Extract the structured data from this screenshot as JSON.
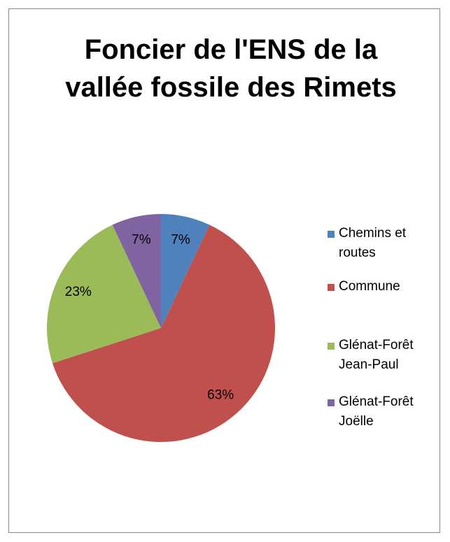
{
  "chart_data": {
    "type": "pie",
    "title": "Foncier de l'ENS de la vallée fossile des Rimets",
    "categories": [
      "Chemins et routes",
      "Commune",
      "Glénat-Forêt Jean-Paul",
      "Glénat-Forêt Joëlle"
    ],
    "values": [
      7,
      63,
      23,
      7
    ],
    "value_labels": [
      "7%",
      "63%",
      "23%",
      "7%"
    ],
    "colors": [
      "#4f81bd",
      "#c0504d",
      "#9bbb59",
      "#8064a2"
    ],
    "legend": "right"
  }
}
